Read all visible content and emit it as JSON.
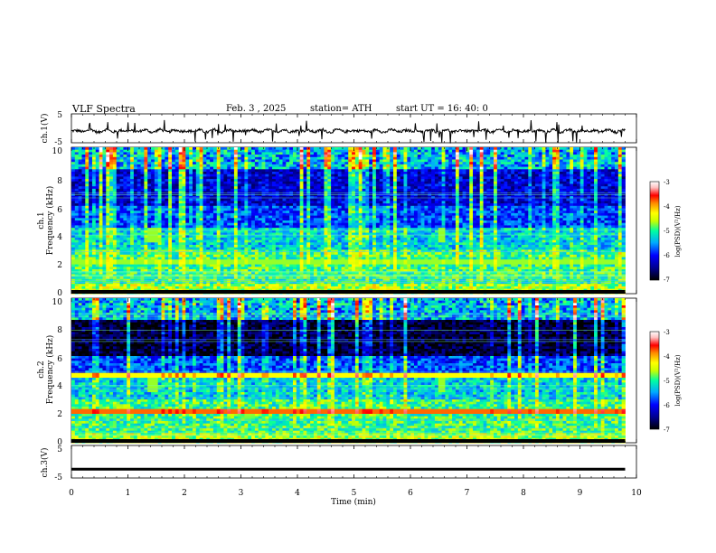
{
  "header": {
    "title": "VLF  Spectra",
    "date": "Feb. 3  , 2025",
    "station": "station= ATH",
    "start": "start  UT  =   16: 40: 0"
  },
  "chart_data": [
    {
      "type": "line",
      "name": "ch.1",
      "ylabel": "ch.1(V)",
      "ylim": [
        -5,
        5
      ],
      "yticks": [
        "5",
        "-5"
      ],
      "xlim": [
        0,
        10
      ],
      "trace": "noisy waveform near -1 V with sporadic spikes"
    },
    {
      "type": "heatmap",
      "name": "ch.1 spectrogram",
      "ylabel": "ch.1\nFrequency  (kHz)",
      "ylim": [
        0,
        10
      ],
      "yticks": [
        "0",
        "2",
        "4",
        "6",
        "8",
        "10"
      ],
      "xlim": [
        0,
        9.8
      ],
      "colorbar": {
        "label": "log(PSD)(V²/Hz)",
        "range": [
          -7,
          -3
        ],
        "ticks": [
          "-3",
          "-4",
          "-5",
          "-6",
          "-7"
        ]
      }
    },
    {
      "type": "heatmap",
      "name": "ch.2 spectrogram",
      "ylabel": "ch.2\nFrequency  (kHz)",
      "ylim": [
        0,
        10
      ],
      "yticks": [
        "0",
        "2",
        "4",
        "6",
        "8",
        "10"
      ],
      "xlim": [
        0,
        9.8
      ],
      "colorbar": {
        "label": "log(PSD)(V²/Hz)",
        "range": [
          -7,
          -3
        ],
        "ticks": [
          "-3",
          "-4",
          "-5",
          "-6",
          "-7"
        ]
      }
    },
    {
      "type": "line",
      "name": "ch.3",
      "ylabel": "ch.3(V)",
      "ylim": [
        -5,
        5
      ],
      "yticks": [
        "5",
        "-5"
      ],
      "xlim": [
        0,
        10
      ],
      "trace": "flat line near -2 V"
    }
  ],
  "xaxis": {
    "label": "Time  (min)",
    "ticks": [
      "0",
      "1",
      "2",
      "3",
      "4",
      "5",
      "6",
      "7",
      "8",
      "9",
      "10"
    ]
  },
  "colormap": [
    "#000000",
    "#00008c",
    "#0000ff",
    "#00aaff",
    "#00ffa0",
    "#c8ff00",
    "#ffff00",
    "#ff8c00",
    "#ff0000",
    "#ffc0c0",
    "#ffffff"
  ]
}
